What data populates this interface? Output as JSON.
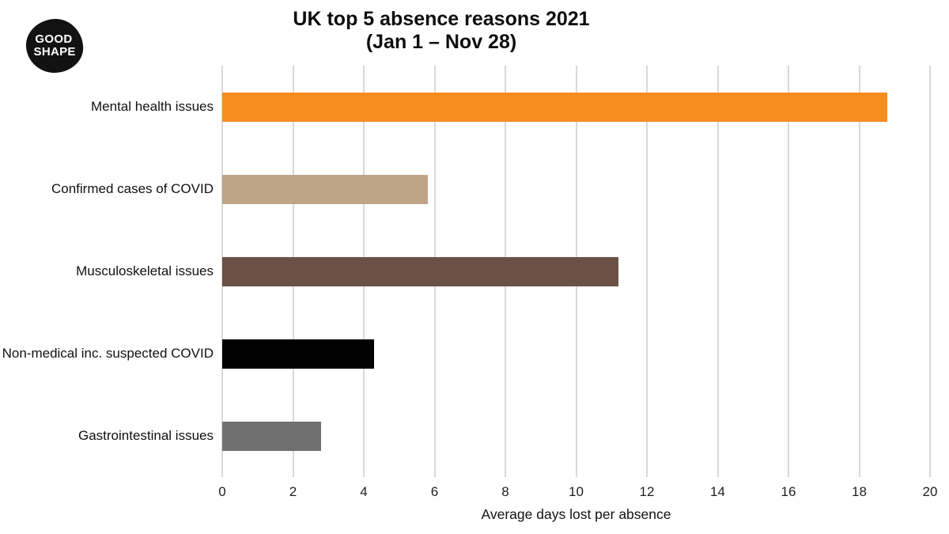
{
  "logo": {
    "line1": "GOOD",
    "line2": "SHAPE",
    "background_color": "#121212",
    "text_color": "#ffffff"
  },
  "title": {
    "line1": "UK top 5 absence reasons 2021",
    "line2": "(Jan 1 – Nov 28)"
  },
  "chart_data": {
    "type": "bar",
    "orientation": "horizontal",
    "title": "UK top 5 absence reasons 2021 (Jan 1 – Nov 28)",
    "categories": [
      "Mental health issues",
      "Confirmed cases of COVID",
      "Musculoskeletal issues",
      "Non-medical inc. suspected COVID",
      "Gastrointestinal issues"
    ],
    "values": [
      18.8,
      5.8,
      11.2,
      4.3,
      2.8
    ],
    "bar_colors": [
      "#F88D20",
      "#BFA588",
      "#6B5046",
      "#000000",
      "#707070"
    ],
    "xlabel": "Average days lost per absence",
    "ylabel": "",
    "xlim": [
      0,
      20
    ],
    "xticks": [
      0,
      2,
      4,
      6,
      8,
      10,
      12,
      14,
      16,
      18,
      20
    ],
    "grid": true,
    "gridline_color": "#d9d9d9",
    "background": "#ffffff",
    "legend": "none"
  }
}
